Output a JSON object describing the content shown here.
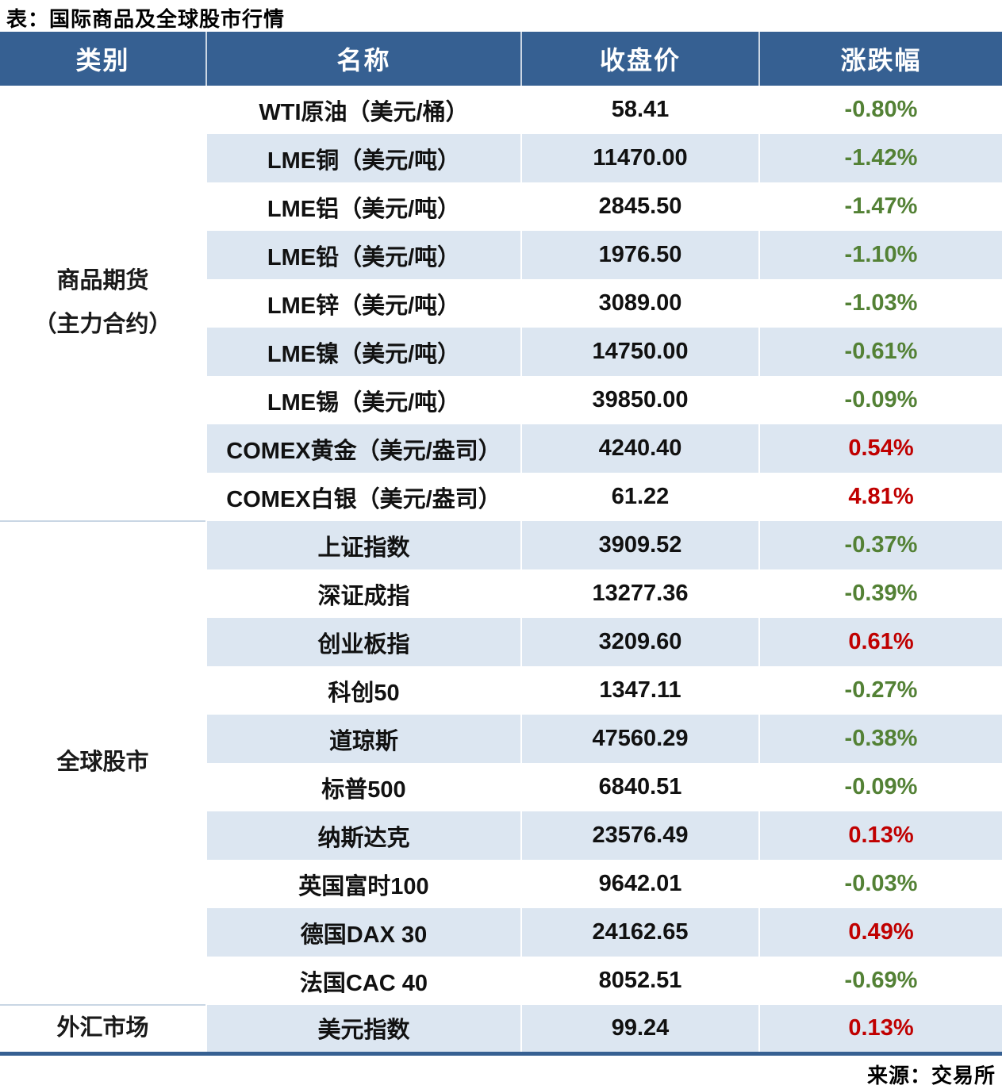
{
  "page_title": "表：国际商品及全球股市行情",
  "source_note": "来源：交易所",
  "colors": {
    "header_bg": "#366092",
    "header_fg": "#ffffff",
    "stripe_bg": "#dce6f1",
    "up_red": "#c00000",
    "down_green": "#538135",
    "border_blue": "#366092",
    "group_divider": "#c9d6e4"
  },
  "chart_data": {
    "type": "table",
    "title": "表：国际商品及全球股市行情",
    "columns": [
      "类别",
      "名称",
      "收盘价",
      "涨跌幅"
    ],
    "layout_hints": {
      "striped_rows": true,
      "negative_color": "green",
      "positive_color": "red",
      "category_column_rowspan": true
    },
    "groups": [
      {
        "category": "商品期货（主力合约）",
        "category_lines": [
          "商品期货",
          "（主力合约）"
        ],
        "rows": [
          {
            "name": "WTI原油（美元/桶）",
            "close": "58.41",
            "change": "-0.80%"
          },
          {
            "name": "LME铜（美元/吨）",
            "close": "11470.00",
            "change": "-1.42%"
          },
          {
            "name": "LME铝（美元/吨）",
            "close": "2845.50",
            "change": "-1.47%"
          },
          {
            "name": "LME铅（美元/吨）",
            "close": "1976.50",
            "change": "-1.10%"
          },
          {
            "name": "LME锌（美元/吨）",
            "close": "3089.00",
            "change": "-1.03%"
          },
          {
            "name": "LME镍（美元/吨）",
            "close": "14750.00",
            "change": "-0.61%"
          },
          {
            "name": "LME锡（美元/吨）",
            "close": "39850.00",
            "change": "-0.09%"
          },
          {
            "name": "COMEX黄金（美元/盎司）",
            "close": "4240.40",
            "change": "0.54%"
          },
          {
            "name": "COMEX白银（美元/盎司）",
            "close": "61.22",
            "change": "4.81%"
          }
        ]
      },
      {
        "category": "全球股市",
        "category_lines": [
          "全球股市"
        ],
        "rows": [
          {
            "name": "上证指数",
            "close": "3909.52",
            "change": "-0.37%"
          },
          {
            "name": "深证成指",
            "close": "13277.36",
            "change": "-0.39%"
          },
          {
            "name": "创业板指",
            "close": "3209.60",
            "change": "0.61%"
          },
          {
            "name": "科创50",
            "close": "1347.11",
            "change": "-0.27%"
          },
          {
            "name": "道琼斯",
            "close": "47560.29",
            "change": "-0.38%"
          },
          {
            "name": "标普500",
            "close": "6840.51",
            "change": "-0.09%"
          },
          {
            "name": "纳斯达克",
            "close": "23576.49",
            "change": "0.13%"
          },
          {
            "name": "英国富时100",
            "close": "9642.01",
            "change": "-0.03%"
          },
          {
            "name": "德国DAX 30",
            "close": "24162.65",
            "change": "0.49%"
          },
          {
            "name": "法国CAC 40",
            "close": "8052.51",
            "change": "-0.69%"
          }
        ]
      },
      {
        "category": "外汇市场",
        "category_lines": [
          "外汇市场"
        ],
        "rows": [
          {
            "name": "美元指数",
            "close": "99.24",
            "change": "0.13%"
          }
        ]
      }
    ]
  }
}
